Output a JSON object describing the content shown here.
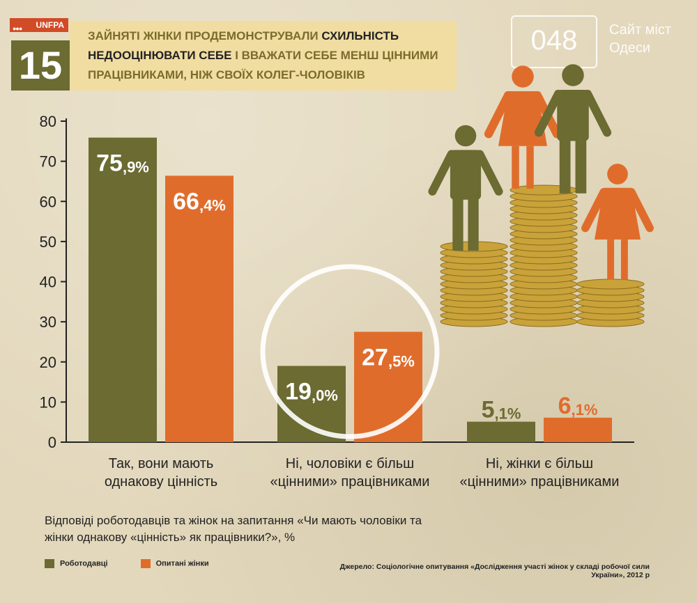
{
  "header": {
    "logo_text": "UNFPA",
    "number": "15",
    "title_part1": "ЗАЙНЯТІ ЖІНКИ ПРОДЕМОНСТРУВАЛИ ",
    "title_highlight1": "СХИЛЬНІСТЬ НЕДООЦІНЮВАТИ СЕБЕ",
    "title_part2": " І ВВАЖАТИ СЕБЕ МЕНШ ЦІННИМИ ПРАЦІВНИКАМИ, НІЖ СВОЇХ КОЛЕГ-ЧОЛОВІКІВ"
  },
  "watermark": {
    "code": "048",
    "text": "Сайт міст Одеси"
  },
  "chart_data": {
    "type": "bar",
    "categories": [
      "Так, вони мають однакову цінність",
      "Ні, чоловіки є більш «цінними» працівниками",
      "Ні, жінки є більш «цінними» працівниками"
    ],
    "series": [
      {
        "name": "Роботодавці",
        "values": [
          75.9,
          19.0,
          5.1
        ],
        "color": "#6b6b32"
      },
      {
        "name": "Опитані жінки",
        "values": [
          66.4,
          27.5,
          6.1
        ],
        "color": "#e06c2c"
      }
    ],
    "ylim": [
      0,
      80
    ],
    "yticks": [
      0,
      10,
      20,
      30,
      40,
      50,
      60,
      70,
      80
    ],
    "highlighted_category": 1,
    "value_suffix": "%"
  },
  "caption": "Відповіді роботодавців та жінок на запитання «Чи мають чоловіки та жінки однакову «цінність» як працівники?», %",
  "legend": {
    "employers": "Роботодавці",
    "women": "Опитані жінки"
  },
  "source": "Джерело: Соціологічне опитування «Дослідження участі жінок у складі робочої сили України», 2012 р",
  "colors": {
    "olive": "#6b6b32",
    "orange": "#e06c2c",
    "coin": "#c9a23a"
  }
}
